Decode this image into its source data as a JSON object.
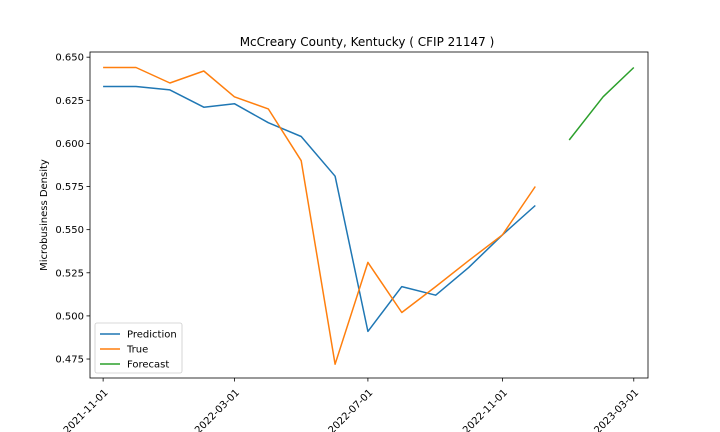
{
  "chart_data": {
    "type": "line",
    "title": "McCreary County, Kentucky ( CFIP 21147 )",
    "xlabel": "",
    "ylabel": "Microbusiness Density",
    "ylim": [
      0.464,
      0.653
    ],
    "xlim": [
      "2021-10-20",
      "2023-03-14"
    ],
    "x_ticks": [
      "2021-11-01",
      "2022-03-01",
      "2022-07-01",
      "2022-11-01",
      "2023-03-01"
    ],
    "y_ticks": [
      "0.475",
      "0.500",
      "0.525",
      "0.550",
      "0.575",
      "0.600",
      "0.625",
      "0.650"
    ],
    "grid": false,
    "legend_position": "lower-left",
    "series": [
      {
        "name": "Prediction",
        "color": "#1f77b4",
        "x": [
          "2021-11-01",
          "2021-12-01",
          "2022-01-01",
          "2022-02-01",
          "2022-03-01",
          "2022-04-01",
          "2022-05-01",
          "2022-06-01",
          "2022-07-01",
          "2022-08-01",
          "2022-09-01",
          "2022-10-01",
          "2022-11-01",
          "2022-12-01"
        ],
        "y": [
          0.633,
          0.633,
          0.631,
          0.621,
          0.623,
          0.612,
          0.604,
          0.581,
          0.491,
          0.517,
          0.512,
          0.528,
          0.547,
          0.564
        ]
      },
      {
        "name": "True",
        "color": "#ff7f0e",
        "x": [
          "2021-11-01",
          "2021-12-01",
          "2022-01-01",
          "2022-02-01",
          "2022-03-01",
          "2022-04-01",
          "2022-05-01",
          "2022-06-01",
          "2022-07-01",
          "2022-08-01",
          "2022-09-01",
          "2022-10-01",
          "2022-11-01",
          "2022-12-01"
        ],
        "y": [
          0.644,
          0.644,
          0.635,
          0.642,
          0.627,
          0.62,
          0.59,
          0.472,
          0.531,
          0.502,
          0.517,
          0.532,
          0.547,
          0.575
        ]
      },
      {
        "name": "Forecast",
        "color": "#2ca02c",
        "x": [
          "2023-01-01",
          "2023-02-01",
          "2023-03-01"
        ],
        "y": [
          0.602,
          0.627,
          0.644
        ]
      }
    ]
  }
}
